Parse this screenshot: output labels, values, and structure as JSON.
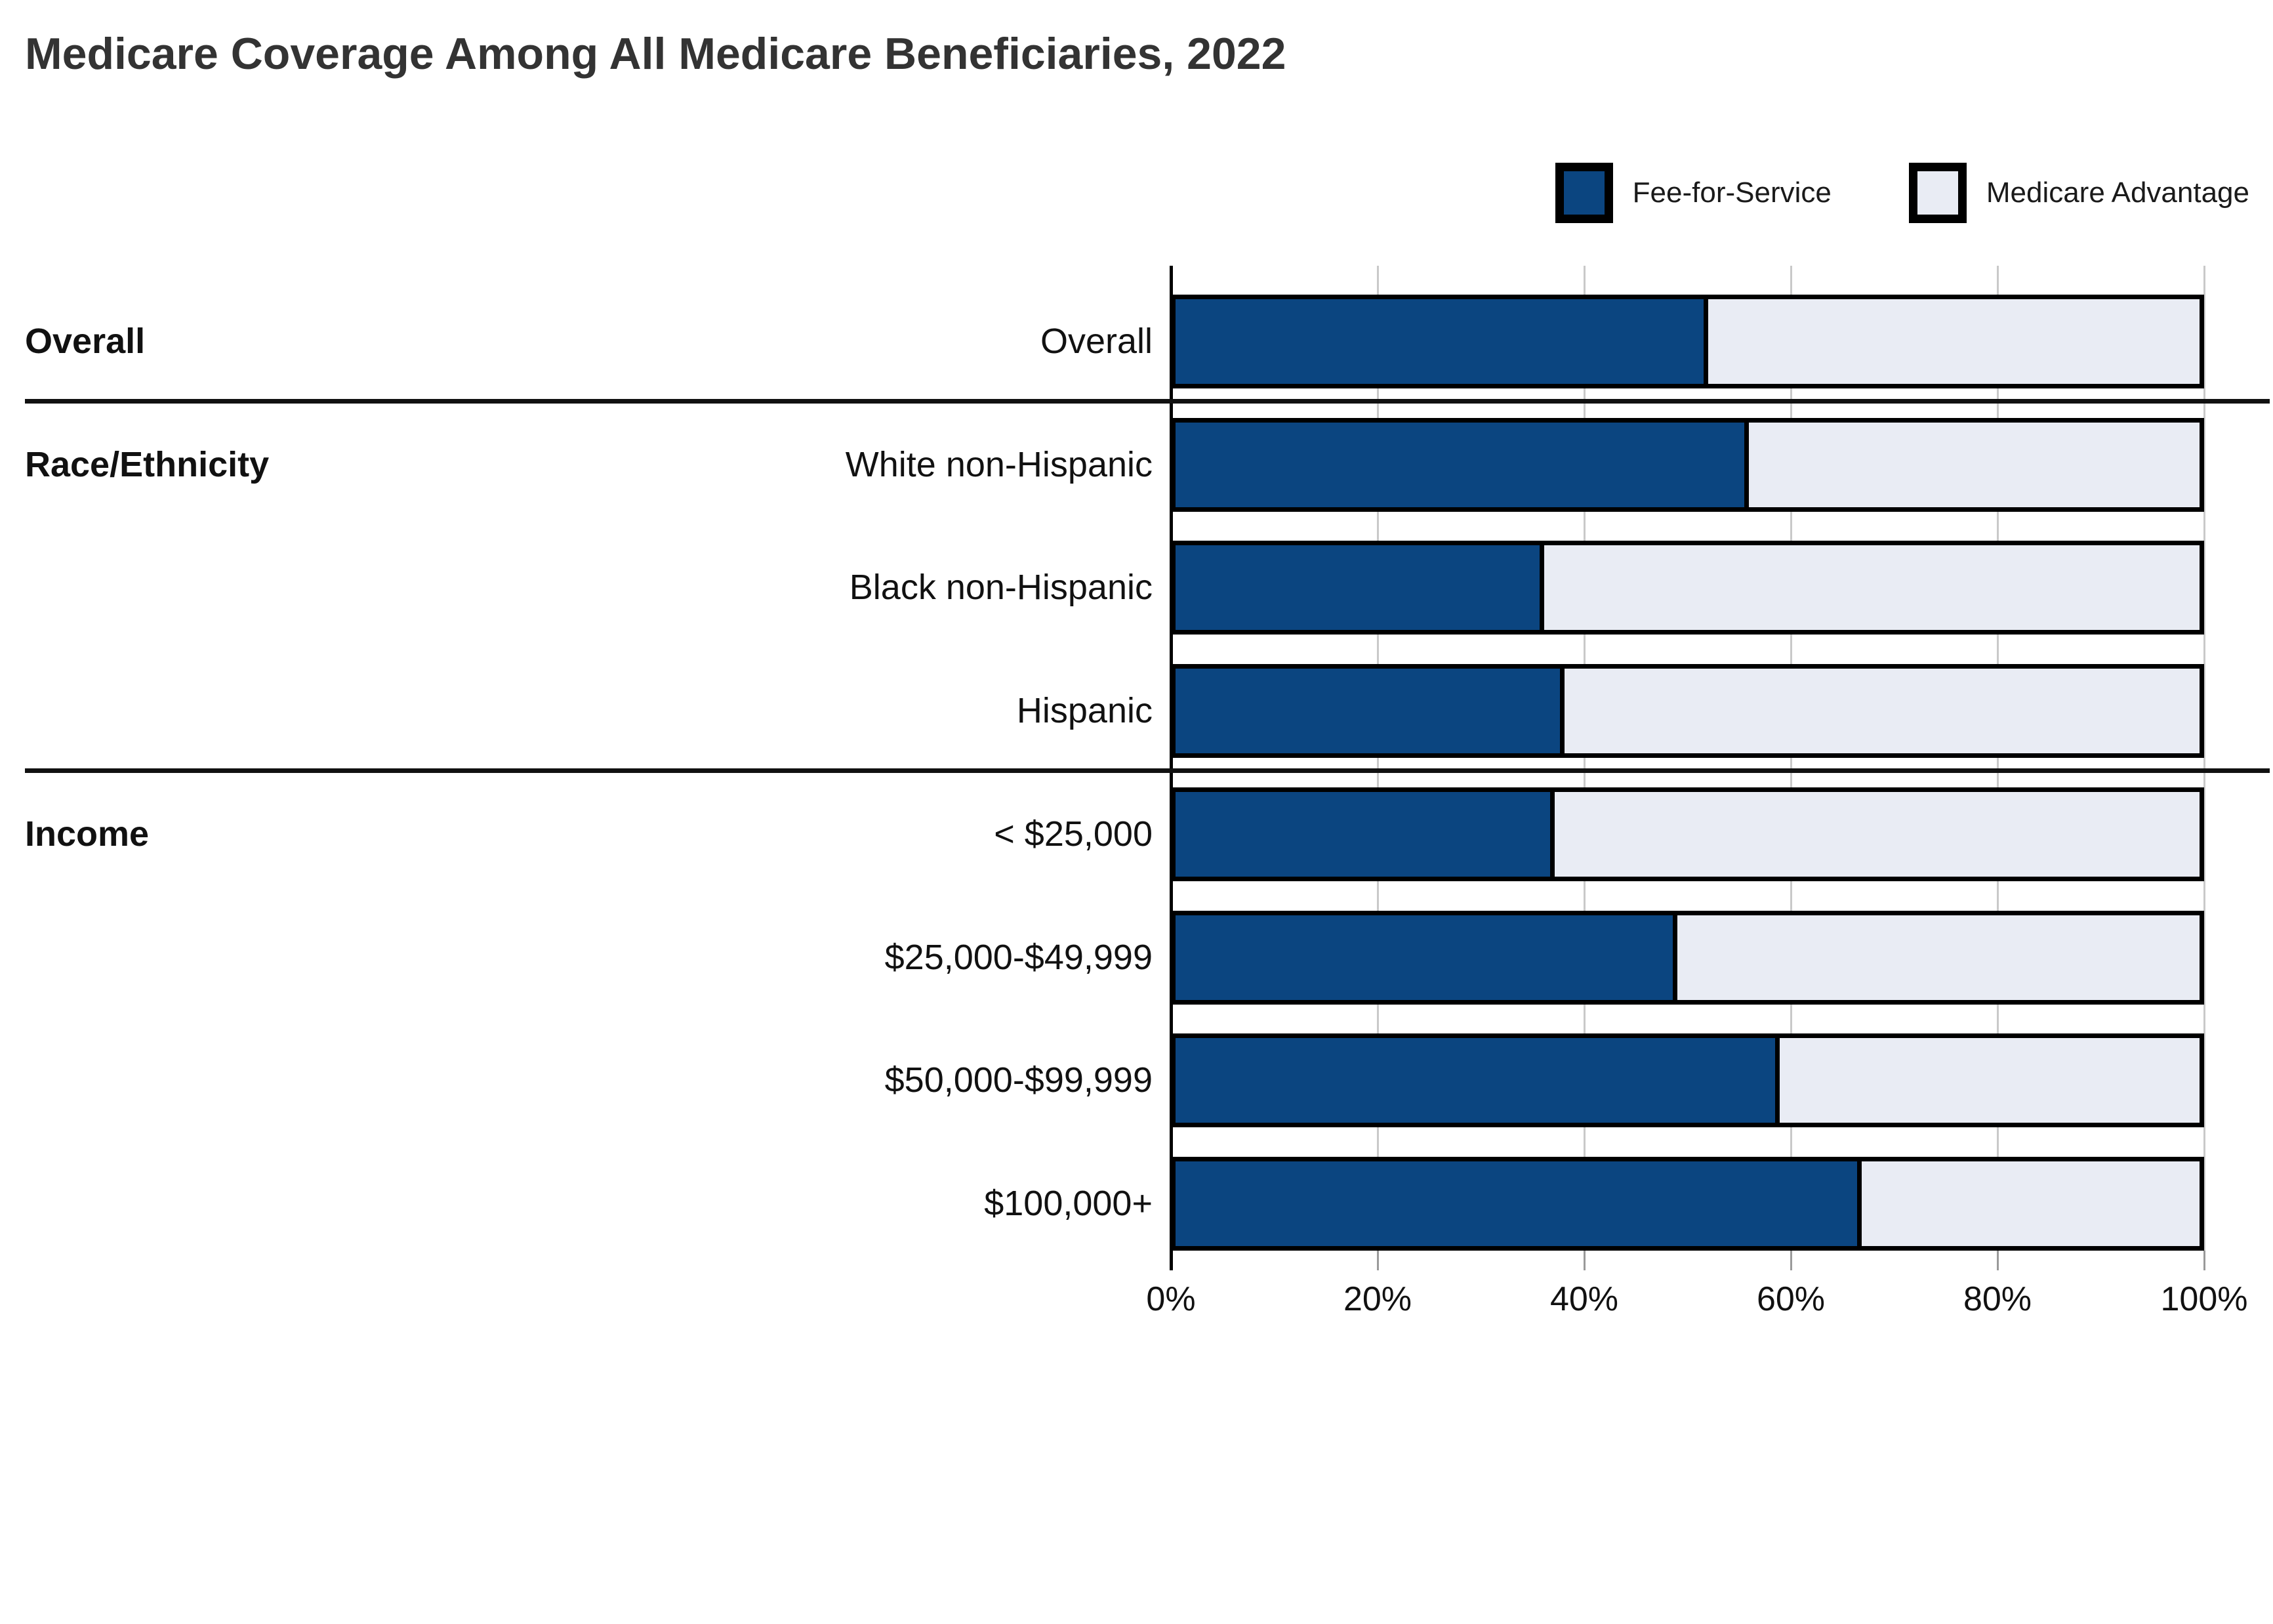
{
  "title": "Medicare Coverage Among All Medicare Beneficiaries, 2022",
  "legend": [
    {
      "label": "Fee-for-Service",
      "color": "#0b4580"
    },
    {
      "label": "Medicare Advantage",
      "color": "#e9ecf4"
    }
  ],
  "chart_data": {
    "type": "bar",
    "orientation": "horizontal",
    "stacked": true,
    "unit": "percent",
    "title": "Medicare Coverage Among All Medicare Beneficiaries, 2022",
    "series_names": [
      "Fee-for-Service",
      "Medicare Advantage"
    ],
    "xlim": [
      0,
      100
    ],
    "x_tick_values": [
      0,
      20,
      40,
      60,
      80,
      100
    ],
    "x_tick_labels": [
      "0%",
      "20%",
      "40%",
      "60%",
      "80%",
      "100%"
    ],
    "grid": true,
    "legend_position": "top-right",
    "groups": [
      {
        "section": "Overall",
        "rows": [
          {
            "label": "Overall",
            "fee_for_service": 52,
            "medicare_advantage": 48
          }
        ]
      },
      {
        "section": "Race/Ethnicity",
        "rows": [
          {
            "label": "White non-Hispanic",
            "fee_for_service": 56,
            "medicare_advantage": 44
          },
          {
            "label": "Black non-Hispanic",
            "fee_for_service": 36,
            "medicare_advantage": 64
          },
          {
            "label": "Hispanic",
            "fee_for_service": 38,
            "medicare_advantage": 62
          }
        ]
      },
      {
        "section": "Income",
        "rows": [
          {
            "label": "< $25,000",
            "fee_for_service": 37,
            "medicare_advantage": 63
          },
          {
            "label": "$25,000-$49,999",
            "fee_for_service": 49,
            "medicare_advantage": 51
          },
          {
            "label": "$50,000-$99,999",
            "fee_for_service": 59,
            "medicare_advantage": 41
          },
          {
            "label": "$100,000+",
            "fee_for_service": 67,
            "medicare_advantage": 33
          }
        ]
      }
    ],
    "colors": {
      "fee_for_service": "#0b4580",
      "medicare_advantage": "#e9ecf4",
      "bar_border": "#000000",
      "gridline": "#c9c9c9",
      "axis": "#000000",
      "divider": "#111111",
      "title_text": "#333333",
      "label_text": "#111111"
    }
  }
}
